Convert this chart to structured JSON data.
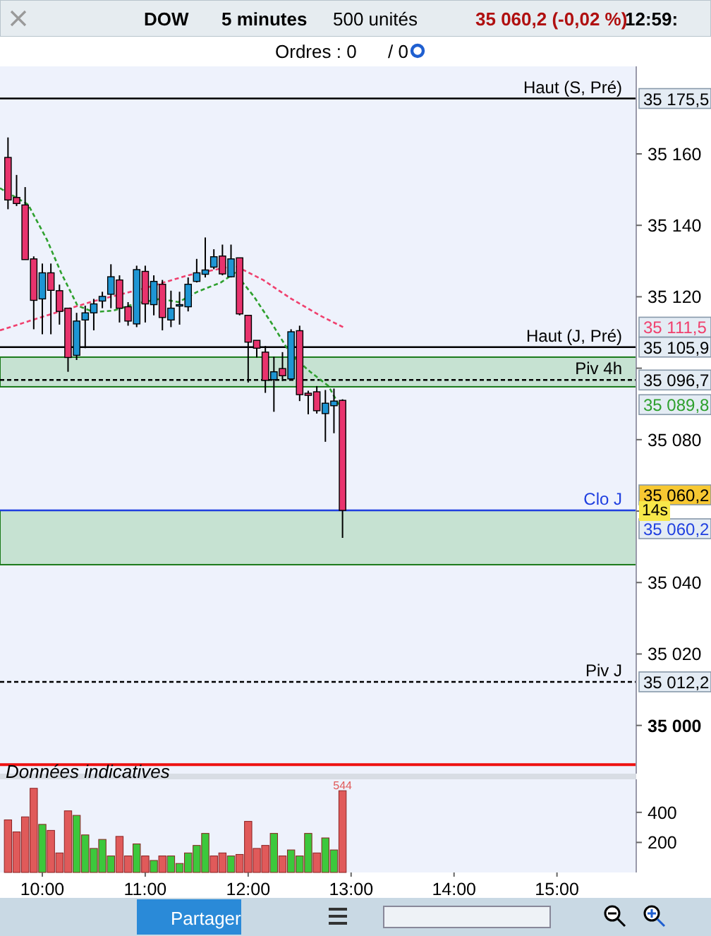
{
  "chart_data": [
    {
      "type": "candlestick",
      "annotations": [
        "DOW",
        "5 minutes",
        "500 unités",
        "35 060,2 (-0,02 %)",
        "12:59:",
        "Ordres : 0",
        "/ 0",
        "Données indicatives",
        "Partager",
        "14s",
        "35 175,5",
        "35 111,5",
        "35 105,9",
        "35 096,7",
        "35 089,8",
        "35 060,2",
        "35 060,2",
        "35 012,2"
      ],
      "x": [
        9.6667,
        9.75,
        9.8333,
        9.9167,
        10,
        10.0833,
        10.1667,
        10.25,
        10.3333,
        10.4167,
        10.5,
        10.5833,
        10.6667,
        10.75,
        10.8333,
        10.9167,
        11,
        11.0833,
        11.1667,
        11.25,
        11.3333,
        11.4167,
        11.5,
        11.5833,
        11.6667,
        11.75,
        11.8333,
        11.9167,
        12,
        12.0833,
        12.1667,
        12.25,
        12.3333,
        12.4167,
        12.5,
        12.5833,
        12.6667,
        12.75,
        12.8333,
        12.9167
      ],
      "ohlc": [
        [
          35159.0,
          35164.6,
          35144.5,
          35147.1
        ],
        [
          35147.8,
          35154.1,
          35145.4,
          35146.1
        ],
        [
          35145.7,
          35150.7,
          35130.4,
          35130.4
        ],
        [
          35130.6,
          35131.3,
          35110.9,
          35119.0
        ],
        [
          35119.4,
          35129.3,
          35109.5,
          35126.7
        ],
        [
          35126.7,
          35129.3,
          35109.5,
          35121.8
        ],
        [
          35121.7,
          35123.4,
          35112.2,
          35115.9
        ],
        [
          35116.8,
          35116.8,
          35099.0,
          35103.0
        ],
        [
          35103.6,
          35115.5,
          35102.3,
          35113.2
        ],
        [
          35113.5,
          35117.5,
          35105.6,
          35115.5
        ],
        [
          35115.5,
          35119.4,
          35110.6,
          35118.0
        ],
        [
          35118.8,
          35121.4,
          35116.8,
          35120.1
        ],
        [
          35120.7,
          35129.1,
          35116.8,
          35125.6
        ],
        [
          35124.7,
          35126.0,
          35112.8,
          35116.8
        ],
        [
          35117.2,
          35118.5,
          35111.9,
          35113.2
        ],
        [
          35112.4,
          35128.7,
          35111.5,
          35127.6
        ],
        [
          35127.1,
          35128.7,
          35112.8,
          35118.0
        ],
        [
          35117.8,
          35126.0,
          35114.8,
          35124.3
        ],
        [
          35123.5,
          35124.7,
          35110.6,
          35114.2
        ],
        [
          35113.5,
          35121.7,
          35111.5,
          35116.8
        ],
        [
          35117.6,
          35121.4,
          35112.2,
          35117.8
        ],
        [
          35117.2,
          35125.4,
          35115.9,
          35123.5
        ],
        [
          35124.3,
          35130.6,
          35124.0,
          35126.7
        ],
        [
          35126.3,
          35136.6,
          35125.4,
          35127.5
        ],
        [
          35128.3,
          35133.3,
          35127.7,
          35131.2
        ],
        [
          35131.4,
          35134.6,
          35126.0,
          35126.4
        ],
        [
          35125.6,
          35134.6,
          35125.4,
          35130.6
        ],
        [
          35130.9,
          35130.9,
          35114.8,
          35115.2
        ],
        [
          35114.8,
          35114.8,
          35096.0,
          35107.3
        ],
        [
          35107.8,
          35107.8,
          35103.0,
          35105.6
        ],
        [
          35104.5,
          35106.2,
          35093.1,
          35096.6
        ],
        [
          35096.8,
          35103.2,
          35087.8,
          35099.0
        ],
        [
          35099.9,
          35104.5,
          35096.4,
          35097.9
        ],
        [
          35097.0,
          35110.9,
          35097.0,
          35110.2
        ],
        [
          35110.5,
          35111.9,
          35090.8,
          35092.6
        ],
        [
          35093.0,
          35093.7,
          35087.1,
          35092.4
        ],
        [
          35093.4,
          35095.0,
          35087.3,
          35088.1
        ],
        [
          35087.3,
          35093.9,
          35079.4,
          35090.2
        ],
        [
          35089.5,
          35094.3,
          35081.8,
          35090.8
        ],
        [
          35091.0,
          35091.3,
          35052.5,
          35060.2
        ]
      ],
      "colors": [
        "#e8336d",
        "#e8336d",
        "#e8336d",
        "#e8336d",
        "#1e96d4",
        "#e8336d",
        "#e8336d",
        "#e8336d",
        "#1e96d4",
        "#1e96d4",
        "#1e96d4",
        "#1e96d4",
        "#1e96d4",
        "#e8336d",
        "#e8336d",
        "#1e96d4",
        "#e8336d",
        "#1e96d4",
        "#e8336d",
        "#1e96d4",
        "#1e96d4",
        "#1e96d4",
        "#1e96d4",
        "#1e96d4",
        "#1e96d4",
        "#e8336d",
        "#1e96d4",
        "#e8336d",
        "#e8336d",
        "#e8336d",
        "#e8336d",
        "#1e96d4",
        "#e8336d",
        "#1e96d4",
        "#e8336d",
        "#e8336d",
        "#e8336d",
        "#1e96d4",
        "#1e96d4",
        "#e8336d"
      ],
      "series": [
        {
          "type": "line",
          "color": "#2ea02e",
          "line_style": "dashed",
          "x": [
            9.589,
            9.863,
            10.046,
            10.183,
            10.342,
            10.502,
            10.685,
            10.913,
            11.142,
            11.324,
            11.507,
            11.735,
            11.872,
            12.055,
            12.237,
            12.42,
            12.603,
            12.781,
            12.88
          ],
          "values": [
            35150.4,
            35145.8,
            35135.9,
            35126.7,
            35117.5,
            35115.7,
            35116.1,
            35118.1,
            35119.4,
            35118.5,
            35121.4,
            35124.0,
            35126.7,
            35120.1,
            35112.2,
            35103.6,
            35099.0,
            35095.0,
            35089.8
          ]
        },
        {
          "type": "line",
          "color": "#f0406e",
          "line_style": "dashed",
          "x": [
            9.589,
            10.046,
            10.502,
            10.959,
            11.415,
            11.872,
            12.146,
            12.42,
            12.694,
            12.922
          ],
          "values": [
            35110.6,
            35114.8,
            35118.8,
            35122.1,
            35126.0,
            35128.7,
            35124.7,
            35119.4,
            35114.8,
            35111.5
          ]
        }
      ],
      "ref_lines": [
        {
          "axis": "y",
          "value": 35175.5,
          "label": "Haut (S, Pré)",
          "color": "#000000"
        },
        {
          "axis": "y",
          "value": 35105.9,
          "label": "Haut (J, Pré)",
          "color": "#000000"
        },
        {
          "axis": "y",
          "value": 35096.7,
          "label": "Piv 4h",
          "color": "#000000",
          "line_style": "dashed"
        },
        {
          "axis": "y",
          "value": 35060.2,
          "label": "Clo J",
          "color": "#1f3fe0"
        },
        {
          "axis": "y",
          "value": 35012.2,
          "label": "Piv J",
          "color": "#000000",
          "line_style": "dashed"
        },
        {
          "axis": "y",
          "value": 34989,
          "color": "#ee1111"
        }
      ],
      "bands": [
        {
          "axis": "y",
          "from": 35094.8,
          "to": 35103.1,
          "color": "#c6e2d2"
        },
        {
          "axis": "y",
          "from": 35045,
          "to": 35060.2,
          "color": "#c6e2d2"
        }
      ],
      "xlim": [
        9.589,
        15.77
      ],
      "ylim": [
        34986.5,
        35184.5
      ],
      "yticks": [
        {
          "value": 35000,
          "label": "35 000"
        },
        {
          "value": 35020,
          "label": "35 020"
        },
        {
          "value": 35040,
          "label": "35 040"
        },
        {
          "value": 35060,
          "label": null
        },
        {
          "value": 35080,
          "label": "35 080"
        },
        {
          "value": 35100,
          "label": null
        },
        {
          "value": 35120,
          "label": "35 120"
        },
        {
          "value": 35140,
          "label": "35 140"
        },
        {
          "value": 35160,
          "label": "35 160"
        }
      ],
      "tick_labels": "y"
    },
    {
      "type": "bar",
      "x": [
        9.6667,
        9.75,
        9.8333,
        9.9167,
        10,
        10.0833,
        10.1667,
        10.25,
        10.3333,
        10.4167,
        10.5,
        10.5833,
        10.6667,
        10.75,
        10.8333,
        10.9167,
        11,
        11.0833,
        11.1667,
        11.25,
        11.3333,
        11.4167,
        11.5,
        11.5833,
        11.6667,
        11.75,
        11.8333,
        11.9167,
        12,
        12.0833,
        12.1667,
        12.25,
        12.3333,
        12.4167,
        12.5,
        12.5833,
        12.6667,
        12.75,
        12.8333,
        12.9167
      ],
      "values": [
        350,
        270,
        370,
        560,
        320,
        280,
        130,
        410,
        380,
        250,
        160,
        220,
        110,
        240,
        110,
        190,
        110,
        80,
        110,
        110,
        60,
        130,
        180,
        260,
        110,
        130,
        110,
        120,
        340,
        160,
        180,
        260,
        110,
        150,
        110,
        260,
        130,
        230,
        150,
        544
      ],
      "colors": [
        "#e05a5a",
        "#e05a5a",
        "#e05a5a",
        "#e05a5a",
        "#3cc83c",
        "#e05a5a",
        "#e05a5a",
        "#e05a5a",
        "#3cc83c",
        "#3cc83c",
        "#3cc83c",
        "#3cc83c",
        "#3cc83c",
        "#e05a5a",
        "#e05a5a",
        "#3cc83c",
        "#e05a5a",
        "#3cc83c",
        "#e05a5a",
        "#3cc83c",
        "#3cc83c",
        "#3cc83c",
        "#3cc83c",
        "#3cc83c",
        "#e05a5a",
        "#e05a5a",
        "#3cc83c",
        "#e05a5a",
        "#e05a5a",
        "#e05a5a",
        "#e05a5a",
        "#3cc83c",
        "#e05a5a",
        "#3cc83c",
        "#3cc83c",
        "#3cc83c",
        "#e05a5a",
        "#3cc83c",
        "#3cc83c",
        "#e05a5a"
      ],
      "value_labels": [
        null,
        null,
        null,
        null,
        null,
        null,
        null,
        null,
        null,
        null,
        null,
        null,
        null,
        null,
        null,
        null,
        null,
        null,
        null,
        null,
        null,
        null,
        null,
        null,
        null,
        null,
        null,
        null,
        null,
        null,
        null,
        null,
        null,
        null,
        null,
        null,
        null,
        null,
        null,
        "544"
      ],
      "xlim": [
        9.589,
        15.77
      ],
      "ylim": [
        0,
        620
      ],
      "yticks": [
        200,
        400
      ],
      "xticks": [
        {
          "value": 10,
          "label": "10:00"
        },
        {
          "value": 11,
          "label": "11:00"
        },
        {
          "value": 12,
          "label": "12:00"
        },
        {
          "value": 13,
          "label": "13:00"
        },
        {
          "value": 14,
          "label": "14:00"
        },
        {
          "value": 15,
          "label": "15:00"
        }
      ]
    }
  ]
}
